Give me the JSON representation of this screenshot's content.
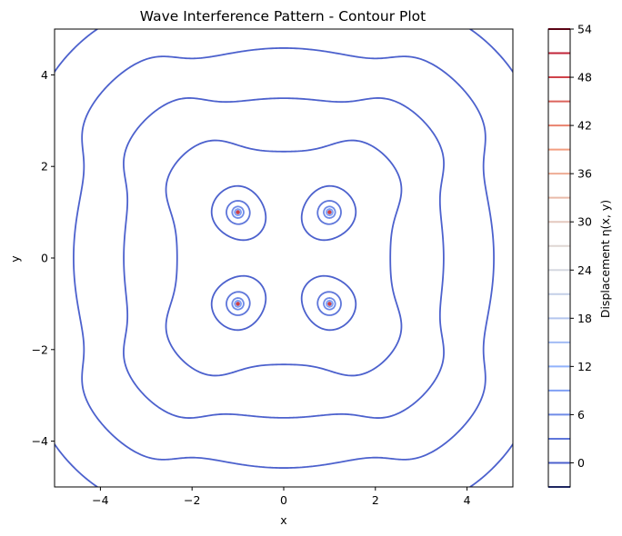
{
  "chart_data": {
    "type": "contour",
    "title": "Wave Interference Pattern - Contour Plot",
    "xlabel": "x",
    "ylabel": "y",
    "xlim": [
      -5,
      5
    ],
    "ylim": [
      -5,
      5
    ],
    "x_ticks": [
      -4,
      -2,
      0,
      2,
      4
    ],
    "y_ticks": [
      -4,
      -2,
      0,
      2,
      4
    ],
    "x_tick_labels": [
      "−4",
      "−2",
      "0",
      "2",
      "4"
    ],
    "y_tick_labels": [
      "−4",
      "−2",
      "0",
      "2",
      "4"
    ],
    "sources": [
      {
        "x": -1,
        "y": 1
      },
      {
        "x": 1,
        "y": 1
      },
      {
        "x": -1,
        "y": -1
      },
      {
        "x": 1,
        "y": -1
      }
    ],
    "contour_levels": [
      -3,
      0,
      3,
      6,
      9,
      12,
      15,
      18,
      21,
      24,
      27,
      30,
      33,
      36,
      39,
      42,
      45,
      48,
      51,
      54
    ],
    "colormap": "coolwarm",
    "colorbar": {
      "label": "Displacement η(x, y)",
      "range": [
        -3,
        54
      ],
      "ticks": [
        0,
        6,
        12,
        18,
        24,
        30,
        36,
        42,
        48,
        54
      ],
      "tick_labels": [
        "0",
        "6",
        "12",
        "18",
        "24",
        "30",
        "36",
        "42",
        "48",
        "54"
      ],
      "position": "right"
    },
    "grid": false
  }
}
